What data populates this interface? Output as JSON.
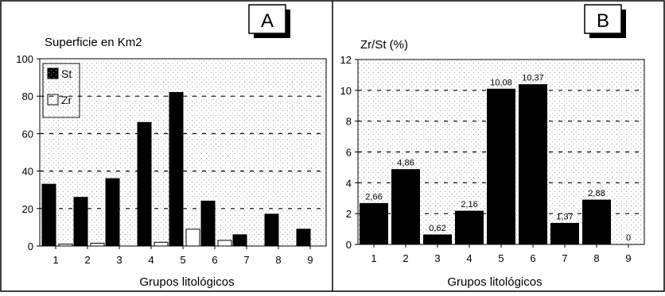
{
  "chart_data": [
    {
      "type": "bar",
      "panel_label": "A",
      "title": "Superficie en Km2",
      "xlabel": "Grupos litológicos",
      "ylabel": "",
      "ylim": [
        0,
        100
      ],
      "yticks": [
        "0",
        "20",
        "40",
        "60",
        "80",
        "100"
      ],
      "categories": [
        "1",
        "2",
        "3",
        "4",
        "5",
        "6",
        "7",
        "8",
        "9"
      ],
      "legend_position": "top-left",
      "grid": "dashed horizontal",
      "series": [
        {
          "name": "St",
          "color": "#000000",
          "values": [
            33,
            26,
            36,
            66,
            82,
            24,
            6,
            17,
            9
          ]
        },
        {
          "name": "Zr",
          "color": "#ffffff",
          "values": [
            1,
            1.5,
            0,
            2,
            9,
            3,
            0,
            0,
            0
          ]
        }
      ]
    },
    {
      "type": "bar",
      "panel_label": "B",
      "title": "Zr/St (%)",
      "xlabel": "Grupos litológicos",
      "ylabel": "",
      "ylim": [
        0,
        12
      ],
      "yticks": [
        "0",
        "2",
        "4",
        "6",
        "8",
        "10",
        "12"
      ],
      "categories": [
        "1",
        "2",
        "3",
        "4",
        "5",
        "6",
        "7",
        "8",
        "9"
      ],
      "grid": "dashed horizontal",
      "series": [
        {
          "name": "",
          "color": "#000000",
          "values": [
            2.66,
            4.86,
            0.62,
            2.16,
            10.08,
            10.37,
            1.37,
            2.88,
            0
          ]
        }
      ],
      "data_labels": [
        "2,66",
        "4,86",
        "0,62",
        "2,16",
        "10,08",
        "10,37",
        "1,37",
        "2,88",
        "0"
      ]
    }
  ]
}
